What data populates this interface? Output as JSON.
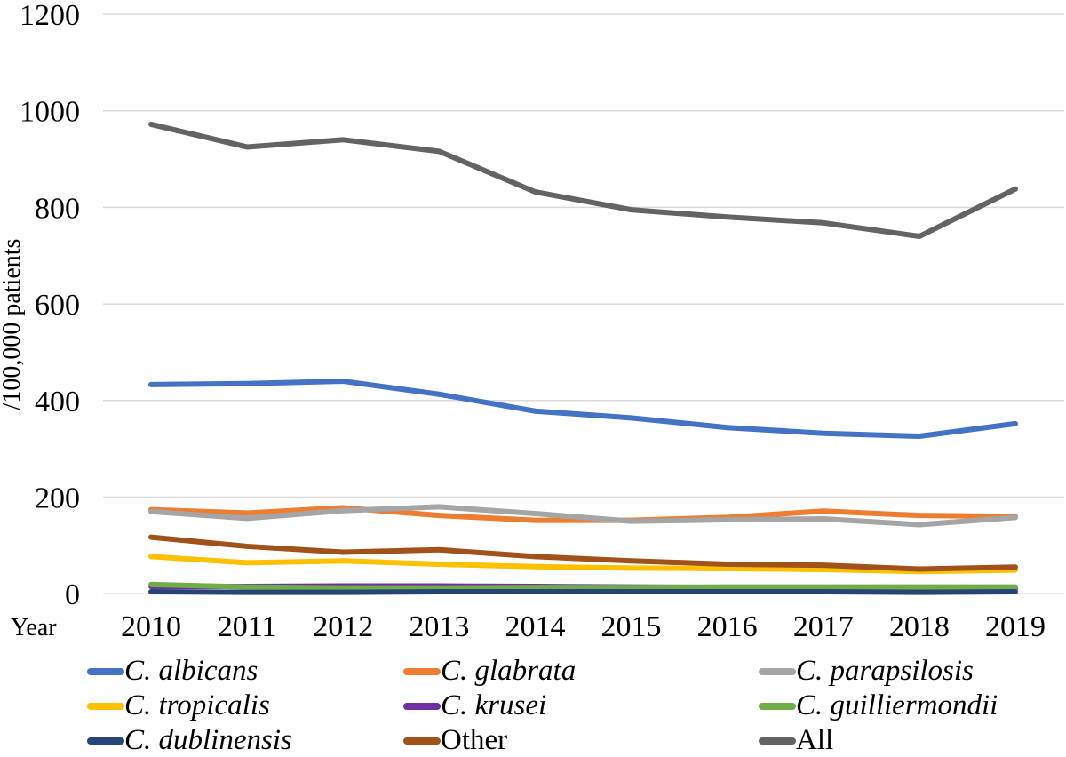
{
  "figure": {
    "ylabel": "/100,000 patients",
    "xlabel": "Year"
  },
  "chart_data": {
    "type": "line",
    "title": "",
    "xlabel": "Year",
    "ylabel": "/100,000 patients",
    "x": [
      2010,
      2011,
      2012,
      2013,
      2014,
      2015,
      2016,
      2017,
      2018,
      2019
    ],
    "ylim": [
      0,
      1200
    ],
    "ytick_step": 200,
    "yticks": [
      0,
      200,
      400,
      600,
      800,
      1000,
      1200
    ],
    "grid": "horizontal",
    "gridline_color": "#D9D9D9",
    "legend_position": "bottom",
    "legend_columns": 3,
    "series": [
      {
        "name": "C. albicans",
        "color": "#4472C4",
        "italic": true,
        "values": [
          433,
          435,
          440,
          413,
          378,
          364,
          344,
          332,
          326,
          352
        ]
      },
      {
        "name": "C. glabrata",
        "color": "#ED7D31",
        "italic": true,
        "values": [
          174,
          167,
          178,
          162,
          152,
          152,
          158,
          171,
          162,
          160
        ]
      },
      {
        "name": "C. parapsilosis",
        "color": "#A5A5A5",
        "italic": true,
        "values": [
          170,
          156,
          172,
          180,
          166,
          150,
          153,
          155,
          143,
          158
        ]
      },
      {
        "name": "C. tropicalis",
        "color": "#FFC000",
        "italic": true,
        "values": [
          77,
          64,
          68,
          61,
          56,
          53,
          52,
          50,
          46,
          49
        ]
      },
      {
        "name": "C. krusei",
        "color": "#7030A0",
        "italic": true,
        "values": [
          15,
          15,
          16,
          16,
          15,
          14,
          13,
          12,
          11,
          11
        ]
      },
      {
        "name": "C. guilliermondii",
        "color": "#70AD47",
        "italic": true,
        "values": [
          19,
          14,
          12,
          12,
          13,
          13,
          14,
          14,
          14,
          14
        ]
      },
      {
        "name": "C. dublinensis",
        "color": "#264478",
        "italic": true,
        "values": [
          4,
          3,
          3,
          4,
          4,
          4,
          4,
          4,
          3,
          4
        ]
      },
      {
        "name": "Other",
        "color": "#A0521A",
        "italic": false,
        "values": [
          117,
          98,
          86,
          91,
          77,
          68,
          61,
          59,
          51,
          55
        ]
      },
      {
        "name": "All",
        "color": "#636363",
        "italic": false,
        "values": [
          972,
          925,
          940,
          916,
          832,
          795,
          780,
          768,
          740,
          838
        ]
      }
    ]
  },
  "layout_note_values_visible_only": true
}
